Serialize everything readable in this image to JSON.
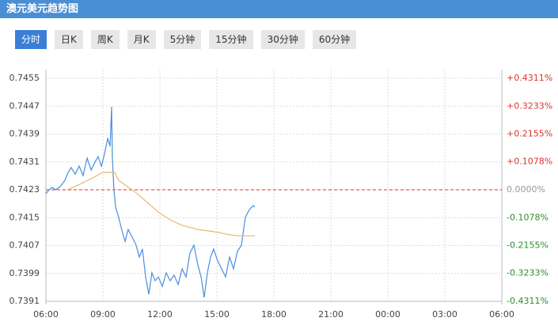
{
  "header": {
    "title": "澳元美元趋势图"
  },
  "tabs": [
    "分时",
    "日K",
    "周K",
    "月K",
    "5分钟",
    "15分钟",
    "30分钟",
    "60分钟"
  ],
  "active_tab": 0,
  "chart_data": {
    "type": "line",
    "xlim": [
      6,
      30
    ],
    "xticks": [
      {
        "value": 6,
        "label": "06:00"
      },
      {
        "value": 9,
        "label": "09:00"
      },
      {
        "value": 12,
        "label": "12:00"
      },
      {
        "value": 15,
        "label": "15:00"
      },
      {
        "value": 18,
        "label": "18:00"
      },
      {
        "value": 21,
        "label": "21:00"
      },
      {
        "value": 24,
        "label": "00:00"
      },
      {
        "value": 27,
        "label": "03:00"
      },
      {
        "value": 30,
        "label": "06:00"
      }
    ],
    "ylim": [
      0.7391,
      0.7455
    ],
    "yticks": [
      0.7455,
      0.7447,
      0.7439,
      0.7431,
      0.7423,
      0.7415,
      0.7407,
      0.7399,
      0.7391
    ],
    "y2lim": [
      -0.4311,
      0.4311
    ],
    "y2ticks": [
      {
        "value": 0.4311,
        "label": "+0.4311%"
      },
      {
        "value": 0.3233,
        "label": "+0.3233%"
      },
      {
        "value": 0.2155,
        "label": "+0.2155%"
      },
      {
        "value": 0.1078,
        "label": "+0.1078%"
      },
      {
        "value": 0,
        "label": "0.0000%"
      },
      {
        "value": -0.1078,
        "label": "-0.1078%"
      },
      {
        "value": -0.2155,
        "label": "-0.2155%"
      },
      {
        "value": -0.3233,
        "label": "-0.3233%"
      },
      {
        "value": -0.4311,
        "label": "-0.4311%"
      }
    ],
    "baseline": 0.7423,
    "baseline_color": "#d9342b",
    "grid": true,
    "series": [
      {
        "color": "#4a8fdc",
        "x": [
          6.0,
          6.17,
          6.33,
          6.5,
          6.75,
          7.0,
          7.17,
          7.33,
          7.54,
          7.75,
          7.96,
          8.17,
          8.38,
          8.58,
          8.75,
          8.92,
          9.08,
          9.25,
          9.38,
          9.46,
          9.5,
          9.58,
          9.67,
          9.83,
          10.04,
          10.17,
          10.33,
          10.54,
          10.75,
          10.92,
          11.08,
          11.25,
          11.42,
          11.58,
          11.75,
          11.92,
          12.13,
          12.33,
          12.54,
          12.75,
          12.96,
          13.17,
          13.38,
          13.58,
          13.79,
          14.0,
          14.17,
          14.33,
          14.5,
          14.67,
          14.83,
          15.04,
          15.25,
          15.46,
          15.67,
          15.88,
          16.08,
          16.29,
          16.5,
          16.71,
          16.92,
          17.0
        ],
        "values": [
          0.74219,
          0.7423,
          0.74237,
          0.7423,
          0.74239,
          0.74257,
          0.7428,
          0.74294,
          0.74275,
          0.74298,
          0.74271,
          0.74321,
          0.74287,
          0.74309,
          0.74325,
          0.74298,
          0.74332,
          0.74377,
          0.74355,
          0.74468,
          0.74321,
          0.7423,
          0.7418,
          0.74151,
          0.74105,
          0.74082,
          0.74116,
          0.74094,
          0.74071,
          0.74037,
          0.7406,
          0.7398,
          0.7393,
          0.73992,
          0.73969,
          0.7398,
          0.73953,
          0.73992,
          0.73969,
          0.73985,
          0.73958,
          0.74003,
          0.7398,
          0.74048,
          0.74071,
          0.74014,
          0.7398,
          0.73921,
          0.73992,
          0.74037,
          0.7406,
          0.74026,
          0.74003,
          0.7398,
          0.74037,
          0.74003,
          0.74053,
          0.74071,
          0.74151,
          0.74173,
          0.74185,
          0.7418
        ]
      },
      {
        "color": "#e8b86a",
        "x": [
          7.13,
          7.75,
          8.38,
          9.0,
          9.63,
          9.83,
          10.67,
          11.29,
          11.92,
          12.54,
          13.17,
          14.0,
          14.83,
          15.67,
          16.08,
          17.0
        ],
        "values": [
          0.7423,
          0.74245,
          0.74262,
          0.7428,
          0.7428,
          0.74257,
          0.74225,
          0.74196,
          0.74166,
          0.74144,
          0.74128,
          0.74116,
          0.7411,
          0.74101,
          0.74098,
          0.74098
        ]
      }
    ]
  }
}
